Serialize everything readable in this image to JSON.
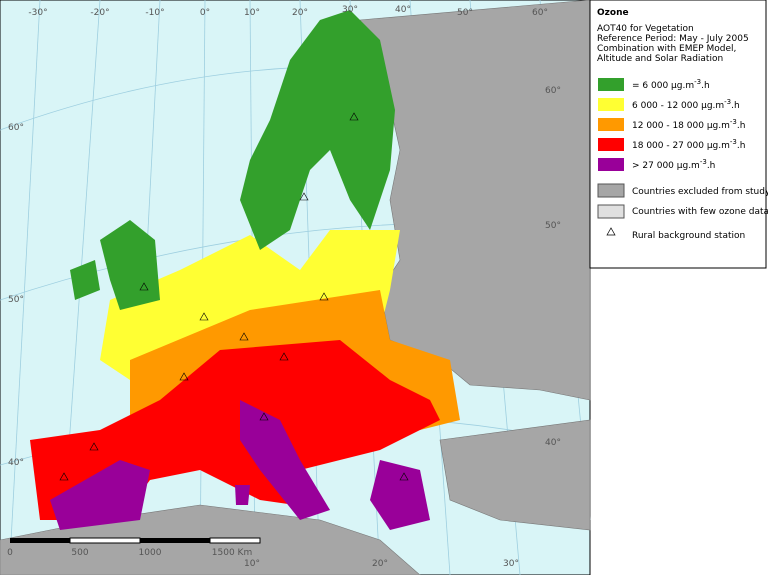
{
  "map": {
    "graticule_top": [
      "-30°",
      "-20°",
      "-10°",
      "0°",
      "10°",
      "20°",
      "30°",
      "40°",
      "50°",
      "60°"
    ],
    "graticule_left": [
      "60°",
      "50°",
      "40°"
    ],
    "graticule_right": [
      "60°",
      "50°",
      "40°"
    ],
    "graticule_bottom": [
      "10°",
      "20°",
      "30°"
    ],
    "scale": [
      "0",
      "500",
      "1000",
      "1500 Km"
    ]
  },
  "legend": {
    "title": "Ozone",
    "subtitle": [
      "AOT40 for Vegetation",
      "Reference Period: May - July 2005",
      "Combination with EMEP Model,",
      "Altitude and Solar Radiation"
    ],
    "classes": [
      {
        "text": "= 6 000 µg.m",
        "sup": "-3",
        "suffix": ".h",
        "color": "#33a02c"
      },
      {
        "text": "6 000 - 12 000 µg.m",
        "sup": "-3",
        "suffix": ".h",
        "color": "#ffff33"
      },
      {
        "text": "12 000 - 18 000 µg.m",
        "sup": "-3",
        "suffix": ".h",
        "color": "#ff9900"
      },
      {
        "text": "18 000 - 27 000 µg.m",
        "sup": "-3",
        "suffix": ".h",
        "color": "#ff0000"
      },
      {
        "text": "> 27 000 µg.m",
        "sup": "-3",
        "suffix": ".h",
        "color": "#990099"
      }
    ],
    "others": [
      "Countries excluded from study",
      "Countries with few ozone data",
      "Rural background station"
    ]
  }
}
